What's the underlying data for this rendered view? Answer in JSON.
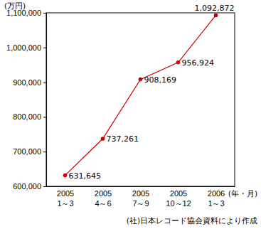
{
  "chart_data": {
    "type": "line",
    "y_label": "(万円)",
    "x_label": "(年・月)",
    "annotations": [
      "(社)日本レコード協会資料により作成"
    ],
    "categories": [
      "2005\n1～3",
      "2005\n4～6",
      "2005\n7～9",
      "2005\n10～12",
      "2006\n1～3"
    ],
    "values": [
      631645,
      737261,
      908169,
      956924,
      1092872
    ],
    "value_labels": [
      "631,645",
      "737,261",
      "908,169",
      "956,924",
      "1,092,872"
    ],
    "color": "#cc0000",
    "marker": "circle",
    "line_style": "solid",
    "data_labels": true,
    "grid": false,
    "ylim": [
      600000,
      1100000
    ],
    "yticks": [
      {
        "value": 600000,
        "label": "600,000"
      },
      {
        "value": 700000,
        "label": "700,000"
      },
      {
        "value": 800000,
        "label": "800,000"
      },
      {
        "value": 900000,
        "label": "900,000"
      },
      {
        "value": 1000000,
        "label": "1,000,000"
      },
      {
        "value": 1100000,
        "label": "1,100,000"
      }
    ]
  }
}
